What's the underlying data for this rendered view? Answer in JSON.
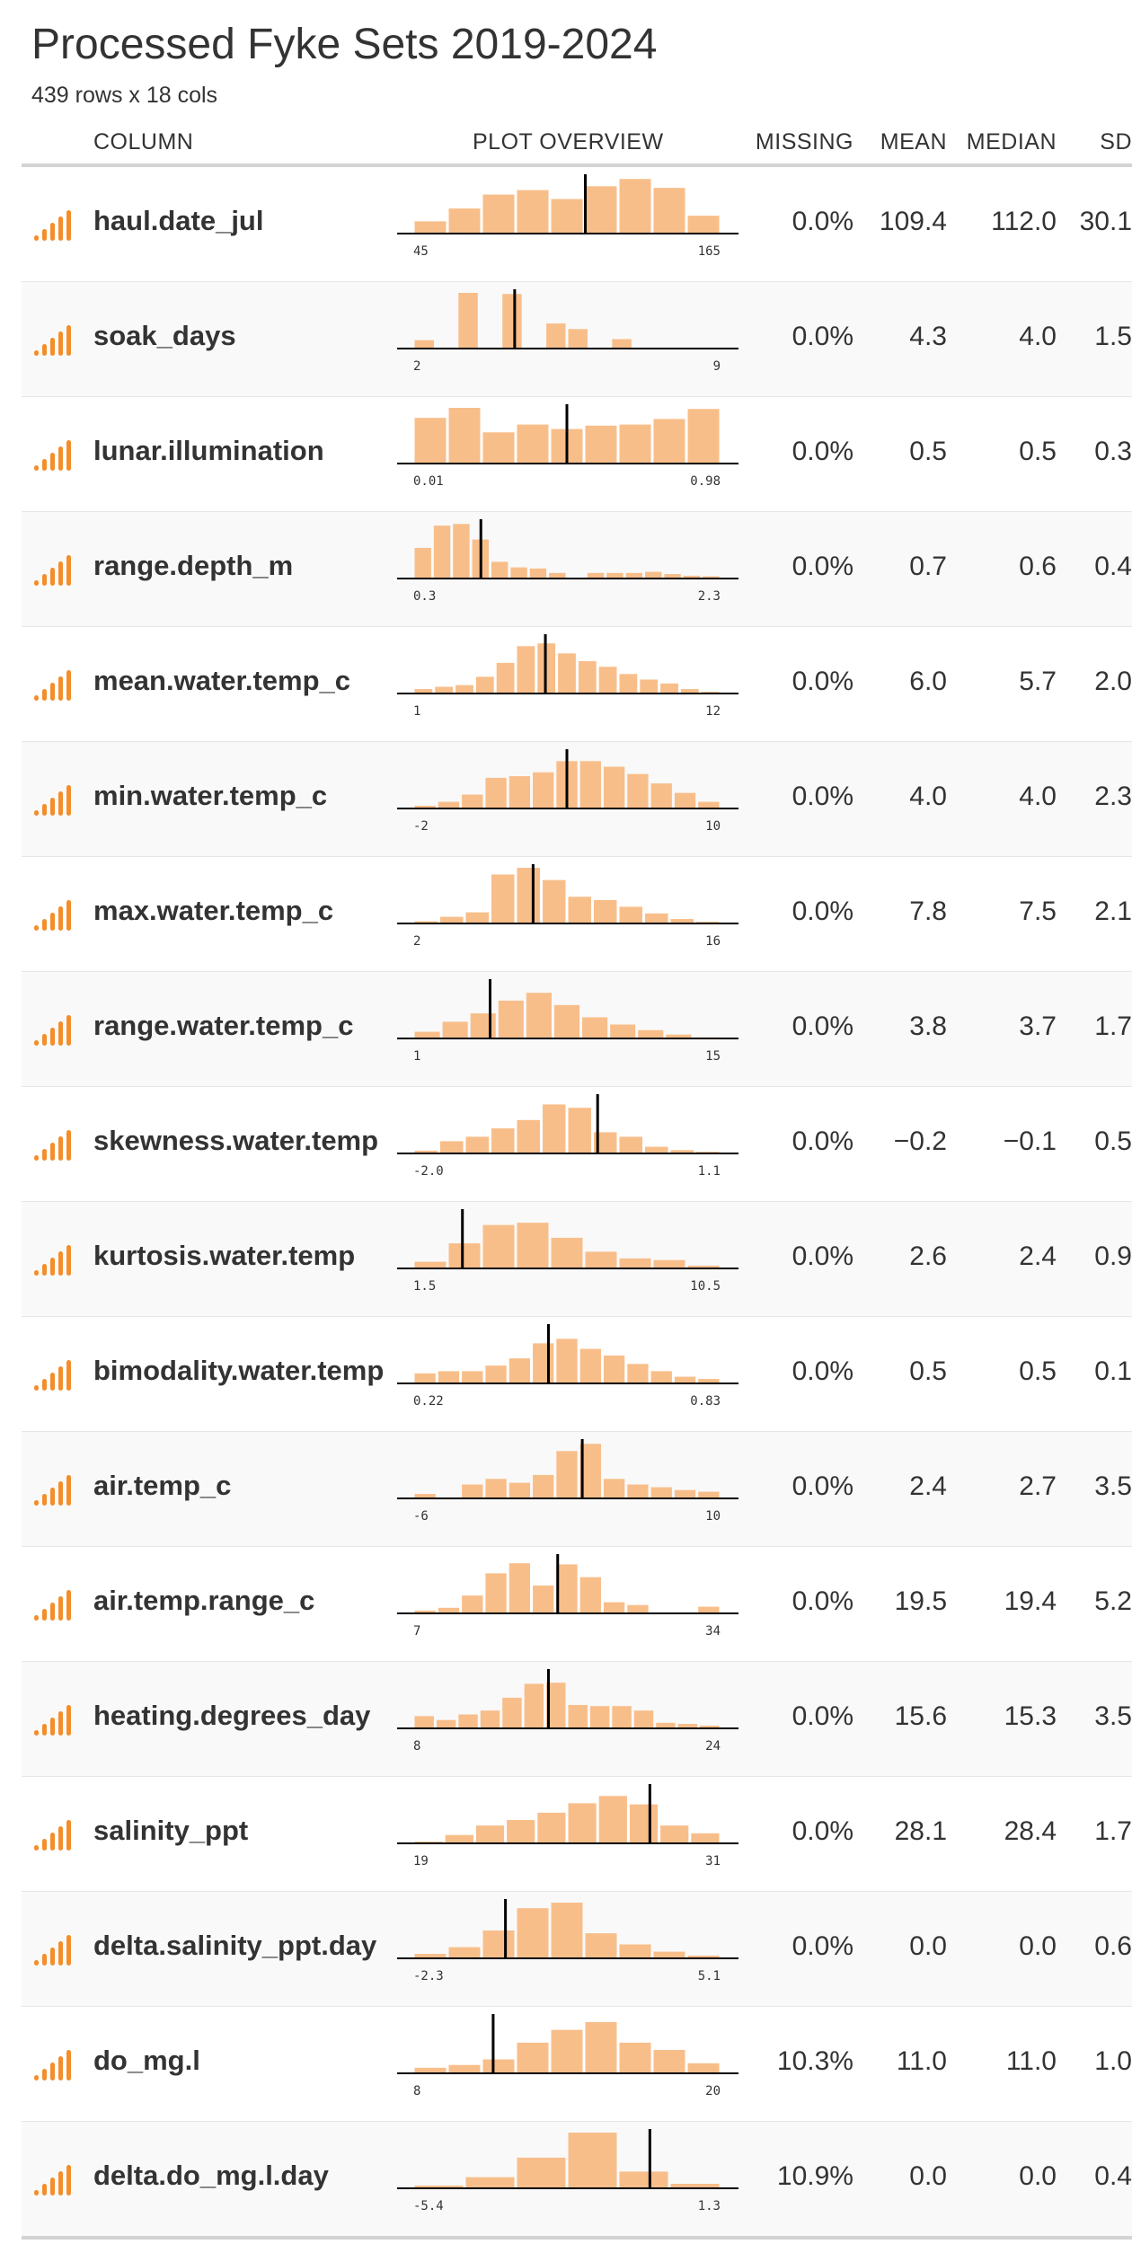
{
  "title": "Processed Fyke Sets 2019-2024",
  "subtitle": "439 rows x 18 cols",
  "headers": {
    "column": "COLUMN",
    "plot": "PLOT OVERVIEW",
    "missing": "MISSING",
    "mean": "MEAN",
    "median": "MEDIAN",
    "sd": "SD"
  },
  "colors": {
    "bar": "#F8BE8A",
    "icon": "#F28E2B",
    "marker": "#000000",
    "axis": "#000000"
  },
  "icon": "numeric-bars-icon",
  "chart_data": {
    "type": "table",
    "plot_type": "histogram",
    "rows": [
      {
        "column": "haul.date_jul",
        "min_label": "45",
        "max_label": "165",
        "counts": [
          0.22,
          0.45,
          0.7,
          0.78,
          0.62,
          0.85,
          0.98,
          0.82,
          0.32
        ],
        "median_pos": 0.56,
        "missing": "0.0%",
        "mean": "109.4",
        "median": "112.0",
        "sd": "30.1"
      },
      {
        "column": "soak_days",
        "min_label": "2",
        "max_label": "9",
        "counts": [
          0.15,
          0,
          1.0,
          0,
          0.98,
          0,
          0.45,
          0.35,
          0,
          0.17,
          0,
          0,
          0,
          0
        ],
        "median_pos": 0.33,
        "missing": "0.0%",
        "mean": "4.3",
        "median": "4.0",
        "sd": "1.5"
      },
      {
        "column": "lunar.illumination",
        "min_label": "0.01",
        "max_label": "0.98",
        "counts": [
          0.82,
          1.0,
          0.56,
          0.7,
          0.62,
          0.68,
          0.7,
          0.8,
          0.98
        ],
        "median_pos": 0.5,
        "missing": "0.0%",
        "mean": "0.5",
        "median": "0.5",
        "sd": "0.3"
      },
      {
        "column": "range.depth_m",
        "min_label": "0.3",
        "max_label": "2.3",
        "counts": [
          0.55,
          0.95,
          0.98,
          0.7,
          0.3,
          0.2,
          0.18,
          0.1,
          0,
          0.1,
          0.1,
          0.1,
          0.12,
          0.08,
          0.05,
          0.04
        ],
        "median_pos": 0.22,
        "missing": "0.0%",
        "mean": "0.7",
        "median": "0.6",
        "sd": "0.4"
      },
      {
        "column": "mean.water.temp_c",
        "min_label": "1",
        "max_label": "12",
        "counts": [
          0.08,
          0.12,
          0.15,
          0.3,
          0.55,
          0.85,
          0.9,
          0.72,
          0.58,
          0.48,
          0.35,
          0.25,
          0.18,
          0.08,
          0.03
        ],
        "median_pos": 0.43,
        "missing": "0.0%",
        "mean": "6.0",
        "median": "5.7",
        "sd": "2.0"
      },
      {
        "column": "min.water.temp_c",
        "min_label": "-2",
        "max_label": "10",
        "counts": [
          0.05,
          0.12,
          0.25,
          0.55,
          0.58,
          0.65,
          0.85,
          0.85,
          0.75,
          0.62,
          0.45,
          0.28,
          0.12
        ],
        "median_pos": 0.5,
        "missing": "0.0%",
        "mean": "4.0",
        "median": "4.0",
        "sd": "2.3"
      },
      {
        "column": "max.water.temp_c",
        "min_label": "2",
        "max_label": "16",
        "counts": [
          0.04,
          0.12,
          0.2,
          0.88,
          1.0,
          0.78,
          0.48,
          0.42,
          0.3,
          0.18,
          0.08,
          0.03
        ],
        "median_pos": 0.39,
        "missing": "0.0%",
        "mean": "7.8",
        "median": "7.5",
        "sd": "2.1"
      },
      {
        "column": "range.water.temp_c",
        "min_label": "1",
        "max_label": "15",
        "counts": [
          0.12,
          0.3,
          0.45,
          0.68,
          0.82,
          0.6,
          0.38,
          0.25,
          0.15,
          0.07,
          0.02
        ],
        "median_pos": 0.25,
        "missing": "0.0%",
        "mean": "3.8",
        "median": "3.7",
        "sd": "1.7"
      },
      {
        "column": "skewness.water.temp",
        "min_label": "-2.0",
        "max_label": "1.1",
        "counts": [
          0.05,
          0.22,
          0.3,
          0.45,
          0.6,
          0.88,
          0.82,
          0.38,
          0.3,
          0.12,
          0.06,
          0.03
        ],
        "median_pos": 0.6,
        "missing": "0.0%",
        "mean": "−0.2",
        "median": "−0.1",
        "sd": "0.5"
      },
      {
        "column": "kurtosis.water.temp",
        "min_label": "1.5",
        "max_label": "10.5",
        "counts": [
          0.12,
          0.45,
          0.78,
          0.82,
          0.55,
          0.3,
          0.18,
          0.15,
          0.05
        ],
        "median_pos": 0.16,
        "missing": "0.0%",
        "mean": "2.6",
        "median": "2.4",
        "sd": "0.9"
      },
      {
        "column": "bimodality.water.temp",
        "min_label": "0.22",
        "max_label": "0.83",
        "counts": [
          0.18,
          0.22,
          0.22,
          0.32,
          0.45,
          0.72,
          0.8,
          0.62,
          0.5,
          0.35,
          0.22,
          0.12,
          0.08
        ],
        "median_pos": 0.44,
        "missing": "0.0%",
        "mean": "0.5",
        "median": "0.5",
        "sd": "0.1"
      },
      {
        "column": "air.temp_c",
        "min_label": "-6",
        "max_label": "10",
        "counts": [
          0.08,
          0,
          0.25,
          0.35,
          0.28,
          0.42,
          0.85,
          0.98,
          0.35,
          0.25,
          0.2,
          0.15,
          0.12
        ],
        "median_pos": 0.55,
        "missing": "0.0%",
        "mean": "2.4",
        "median": "2.7",
        "sd": "3.5"
      },
      {
        "column": "air.temp.range_c",
        "min_label": "7",
        "max_label": "34",
        "counts": [
          0.05,
          0.1,
          0.32,
          0.72,
          0.9,
          0.5,
          0.88,
          0.65,
          0.2,
          0.15,
          0,
          0,
          0.12
        ],
        "median_pos": 0.47,
        "missing": "0.0%",
        "mean": "19.5",
        "median": "19.4",
        "sd": "5.2"
      },
      {
        "column": "heating.degrees_day",
        "min_label": "8",
        "max_label": "24",
        "counts": [
          0.22,
          0.15,
          0.25,
          0.32,
          0.55,
          0.8,
          0.82,
          0.42,
          0.4,
          0.4,
          0.32,
          0.1,
          0.08,
          0.05
        ],
        "median_pos": 0.44,
        "missing": "0.0%",
        "mean": "15.6",
        "median": "15.3",
        "sd": "3.5"
      },
      {
        "column": "salinity_ppt",
        "min_label": "19",
        "max_label": "31",
        "counts": [
          0.03,
          0.15,
          0.32,
          0.42,
          0.55,
          0.72,
          0.85,
          0.7,
          0.32,
          0.18
        ],
        "median_pos": 0.77,
        "missing": "0.0%",
        "mean": "28.1",
        "median": "28.4",
        "sd": "1.7"
      },
      {
        "column": "delta.salinity_ppt.day",
        "min_label": "-2.3",
        "max_label": "5.1",
        "counts": [
          0.08,
          0.2,
          0.5,
          0.9,
          1.0,
          0.45,
          0.25,
          0.12,
          0.05
        ],
        "median_pos": 0.3,
        "missing": "0.0%",
        "mean": "0.0",
        "median": "0.0",
        "sd": "0.6"
      },
      {
        "column": "do_mg.l",
        "min_label": "8",
        "max_label": "20",
        "counts": [
          0.1,
          0.15,
          0.25,
          0.55,
          0.78,
          0.92,
          0.55,
          0.42,
          0.18
        ],
        "median_pos": 0.26,
        "missing": "10.3%",
        "mean": "11.0",
        "median": "11.0",
        "sd": "1.0"
      },
      {
        "column": "delta.do_mg.l.day",
        "min_label": "-5.4",
        "max_label": "1.3",
        "counts": [
          0.05,
          0.2,
          0.55,
          1.0,
          0.3,
          0.08
        ],
        "median_pos": 0.77,
        "missing": "10.9%",
        "mean": "0.0",
        "median": "0.0",
        "sd": "0.4"
      }
    ]
  }
}
